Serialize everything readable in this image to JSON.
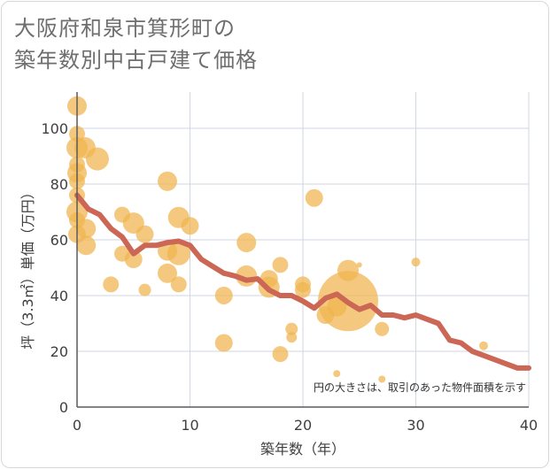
{
  "chart_data": {
    "type": "scatter",
    "title": [
      "大阪府和泉市箕形町の",
      "築年数別中古戸建て価格"
    ],
    "xlabel": "築年数（年）",
    "ylabel": "坪（3.3㎡）単価（万円）",
    "xlim": [
      0,
      40
    ],
    "ylim": [
      0,
      113
    ],
    "xticks": [
      0,
      10,
      20,
      30,
      40
    ],
    "yticks": [
      0,
      20,
      40,
      60,
      80,
      100
    ],
    "grid": true,
    "note": "円の大きさは、取引のあった物件面積を示す",
    "colors": {
      "bubble": "#f0b44e",
      "line": "#cc6655",
      "grid": "#cfd7e3",
      "axis": "#5a5a5a"
    },
    "bubbles": [
      {
        "x": 0,
        "y": 108,
        "s": 11
      },
      {
        "x": 0,
        "y": 98,
        "s": 9
      },
      {
        "x": 0,
        "y": 93,
        "s": 12
      },
      {
        "x": 0,
        "y": 87,
        "s": 9
      },
      {
        "x": 0,
        "y": 84,
        "s": 11
      },
      {
        "x": 0,
        "y": 81,
        "s": 9
      },
      {
        "x": 0,
        "y": 76,
        "s": 9
      },
      {
        "x": 0,
        "y": 70,
        "s": 12
      },
      {
        "x": 0,
        "y": 67,
        "s": 9
      },
      {
        "x": 0,
        "y": 62,
        "s": 10
      },
      {
        "x": 0.7,
        "y": 93,
        "s": 12
      },
      {
        "x": 0.8,
        "y": 64,
        "s": 11
      },
      {
        "x": 0.8,
        "y": 58,
        "s": 11
      },
      {
        "x": 1.8,
        "y": 89,
        "s": 13
      },
      {
        "x": 3,
        "y": 44,
        "s": 9
      },
      {
        "x": 4,
        "y": 69,
        "s": 9
      },
      {
        "x": 4,
        "y": 55,
        "s": 9
      },
      {
        "x": 5,
        "y": 66,
        "s": 12
      },
      {
        "x": 5,
        "y": 53,
        "s": 10
      },
      {
        "x": 6,
        "y": 62,
        "s": 10
      },
      {
        "x": 6,
        "y": 42,
        "s": 7
      },
      {
        "x": 8,
        "y": 81,
        "s": 11
      },
      {
        "x": 8,
        "y": 56,
        "s": 11
      },
      {
        "x": 8,
        "y": 48,
        "s": 11
      },
      {
        "x": 9,
        "y": 68,
        "s": 12
      },
      {
        "x": 9,
        "y": 55,
        "s": 13
      },
      {
        "x": 9,
        "y": 44,
        "s": 9
      },
      {
        "x": 10,
        "y": 65,
        "s": 10
      },
      {
        "x": 13,
        "y": 40,
        "s": 10
      },
      {
        "x": 13,
        "y": 23,
        "s": 10
      },
      {
        "x": 15,
        "y": 59,
        "s": 11
      },
      {
        "x": 15,
        "y": 47,
        "s": 12
      },
      {
        "x": 17,
        "y": 46,
        "s": 10
      },
      {
        "x": 17,
        "y": 43,
        "s": 12
      },
      {
        "x": 18,
        "y": 51,
        "s": 9
      },
      {
        "x": 18,
        "y": 19,
        "s": 9
      },
      {
        "x": 19,
        "y": 28,
        "s": 7
      },
      {
        "x": 19,
        "y": 25,
        "s": 6
      },
      {
        "x": 20,
        "y": 44,
        "s": 9
      },
      {
        "x": 20,
        "y": 42,
        "s": 9
      },
      {
        "x": 21,
        "y": 75,
        "s": 10
      },
      {
        "x": 22,
        "y": 33,
        "s": 10
      },
      {
        "x": 23,
        "y": 36,
        "s": 11
      },
      {
        "x": 23,
        "y": 12,
        "s": 4
      },
      {
        "x": 24,
        "y": 49,
        "s": 12
      },
      {
        "x": 24,
        "y": 38,
        "s": 34
      },
      {
        "x": 25,
        "y": 51,
        "s": 3
      },
      {
        "x": 27,
        "y": 28,
        "s": 8
      },
      {
        "x": 27,
        "y": 10,
        "s": 4
      },
      {
        "x": 30,
        "y": 52,
        "s": 5
      },
      {
        "x": 36,
        "y": 22,
        "s": 5
      }
    ],
    "trend": {
      "x": [
        0,
        1,
        2,
        3,
        4,
        5,
        6,
        7,
        8,
        9,
        10,
        11,
        12,
        13,
        14,
        15,
        16,
        17,
        18,
        19,
        20,
        21,
        22,
        23,
        24,
        25,
        26,
        27,
        28,
        29,
        30,
        31,
        32,
        33,
        34,
        35,
        36,
        37,
        38,
        39,
        40
      ],
      "y": [
        76,
        71,
        69,
        64,
        61,
        55,
        58,
        58,
        59,
        59.5,
        58,
        53,
        50.5,
        48,
        47,
        45.5,
        46,
        42,
        40,
        40,
        38,
        35.5,
        39,
        40.5,
        37.5,
        35,
        36.5,
        33,
        33,
        32,
        33,
        31.5,
        30,
        24,
        23,
        20,
        18.5,
        17,
        15.5,
        14,
        14
      ]
    }
  }
}
